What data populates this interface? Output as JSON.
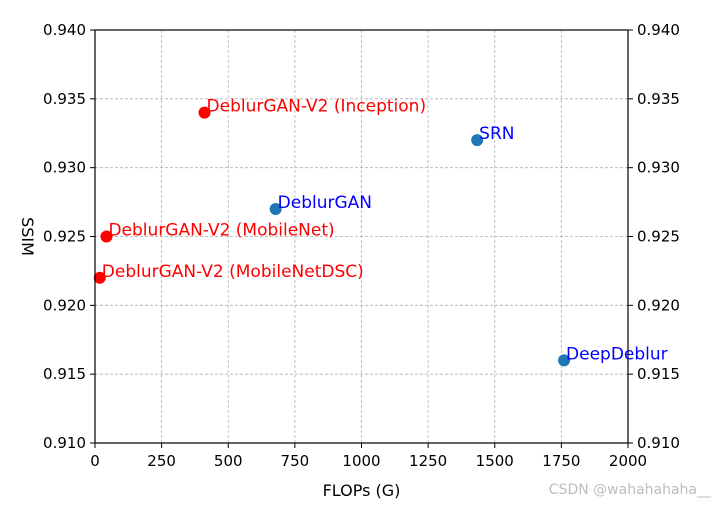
{
  "chart_data": {
    "type": "scatter",
    "xlabel": "FLOPs (G)",
    "ylabel": "SSIM",
    "xlim": [
      0,
      2000
    ],
    "ylim": [
      0.91,
      0.94
    ],
    "x_ticks": [
      "0",
      "250",
      "500",
      "750",
      "1000",
      "1250",
      "1500",
      "1750",
      "2000"
    ],
    "y_ticks": [
      "0.910",
      "0.915",
      "0.920",
      "0.925",
      "0.930",
      "0.935",
      "0.940"
    ],
    "grid": true,
    "points": [
      {
        "label": "DeblurGAN-V2 (Inception)",
        "x": 411,
        "y": 0.934,
        "color": "#ff0000",
        "label_color": "#ff0000"
      },
      {
        "label": "SRN",
        "x": 1434,
        "y": 0.932,
        "color": "#1f77b4",
        "label_color": "#0000ff"
      },
      {
        "label": "DeblurGAN",
        "x": 678,
        "y": 0.927,
        "color": "#1f77b4",
        "label_color": "#0000ff"
      },
      {
        "label": "DeblurGAN-V2 (MobileNet)",
        "x": 43,
        "y": 0.925,
        "color": "#ff0000",
        "label_color": "#ff0000"
      },
      {
        "label": "DeblurGAN-V2 (MobileNetDSC)",
        "x": 18,
        "y": 0.922,
        "color": "#ff0000",
        "label_color": "#ff0000"
      },
      {
        "label": "DeepDeblur",
        "x": 1760,
        "y": 0.916,
        "color": "#1f77b4",
        "label_color": "#0000ff"
      }
    ]
  },
  "watermark": "CSDN @wahahahaha__"
}
